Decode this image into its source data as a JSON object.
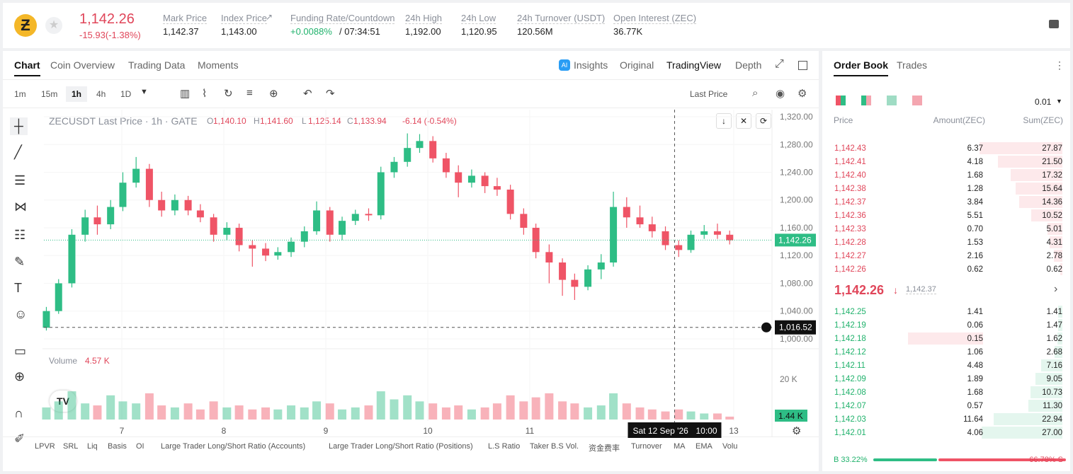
{
  "header": {
    "price": "1,142.26",
    "change": "-15.93(-1.38%)",
    "stats": [
      {
        "label": "Mark Price",
        "value": "1,142.37"
      },
      {
        "label": "Index Price",
        "value": "1,143.00"
      },
      {
        "label": "Funding Rate/Countdown",
        "value": "+0.0088%",
        "value2": "/ 07:34:51"
      },
      {
        "label": "24h High",
        "value": "1,192.00"
      },
      {
        "label": "24h Low",
        "value": "1,120.95"
      },
      {
        "label": "24h Turnover (USDT)",
        "value": "120.56M"
      },
      {
        "label": "Open Interest (ZEC)",
        "value": "36.77K"
      }
    ]
  },
  "tabs": [
    "Chart",
    "Coin Overview",
    "Trading Data",
    "Moments"
  ],
  "view_tabs": [
    "Insights",
    "Original",
    "TradingView",
    "Depth"
  ],
  "intervals": [
    "1m",
    "15m",
    "1h",
    "4h",
    "1D"
  ],
  "price_type": "Last Price",
  "legend": {
    "title": "ZECUSDT Last Price · 1h · GATE",
    "ohlc": [
      [
        "O",
        "1,140.10"
      ],
      [
        "H",
        "1,141.60"
      ],
      [
        "L",
        "1,125.14"
      ],
      [
        "C",
        "1,133.94"
      ]
    ],
    "change": "-6.14 (-0.54%)"
  },
  "volume": {
    "label": "Volume",
    "value": "4.57 K"
  },
  "indicators": [
    "LPVR",
    "SRL",
    "Liq",
    "Basis",
    "OI",
    "Large Trader Long/Short Ratio (Accounts)",
    "Large Trader Long/Short Ratio (Positions)",
    "L.S Ratio",
    "Taker B.S Vol.",
    "资金费率",
    "Turnover",
    "MA",
    "EMA",
    "Volu"
  ],
  "chart_data": {
    "type": "candlestick",
    "up_color": "#2ebd85",
    "down_color": "#ef5466",
    "x": [
      6.26,
      6.38,
      6.51,
      6.64,
      6.76,
      6.89,
      7.01,
      7.14,
      7.27,
      7.39,
      7.52,
      7.65,
      7.77,
      7.9,
      8.03,
      8.15,
      8.28,
      8.41,
      8.53,
      8.66,
      8.79,
      8.91,
      9.04,
      9.16,
      9.29,
      9.42,
      9.54,
      9.67,
      9.8,
      9.92,
      10.05,
      10.18,
      10.3,
      10.43,
      10.56,
      10.68,
      10.81,
      10.94,
      11.06,
      11.19,
      11.32,
      11.44,
      11.57,
      11.7,
      11.82,
      11.95,
      12.08,
      12.2,
      12.33,
      12.46,
      12.58,
      12.71,
      12.84,
      12.96
    ],
    "candles": [
      [
        1016,
        1046,
        1012,
        1040
      ],
      [
        1040,
        1086,
        1036,
        1080
      ],
      [
        1080,
        1158,
        1074,
        1150
      ],
      [
        1150,
        1186,
        1140,
        1175
      ],
      [
        1175,
        1192,
        1150,
        1165
      ],
      [
        1165,
        1200,
        1158,
        1190
      ],
      [
        1190,
        1240,
        1184,
        1225
      ],
      [
        1225,
        1262,
        1218,
        1245
      ],
      [
        1245,
        1252,
        1190,
        1200
      ],
      [
        1200,
        1212,
        1176,
        1185
      ],
      [
        1185,
        1208,
        1178,
        1200
      ],
      [
        1200,
        1206,
        1178,
        1185
      ],
      [
        1185,
        1194,
        1168,
        1175
      ],
      [
        1175,
        1180,
        1140,
        1150
      ],
      [
        1150,
        1168,
        1142,
        1160
      ],
      [
        1160,
        1166,
        1126,
        1135
      ],
      [
        1135,
        1142,
        1104,
        1130
      ],
      [
        1130,
        1138,
        1112,
        1120
      ],
      [
        1120,
        1132,
        1114,
        1125
      ],
      [
        1125,
        1146,
        1118,
        1140
      ],
      [
        1140,
        1162,
        1132,
        1155
      ],
      [
        1155,
        1198,
        1150,
        1185
      ],
      [
        1185,
        1190,
        1140,
        1150
      ],
      [
        1150,
        1176,
        1142,
        1170
      ],
      [
        1170,
        1186,
        1164,
        1180
      ],
      [
        1180,
        1188,
        1170,
        1178
      ],
      [
        1178,
        1248,
        1172,
        1240
      ],
      [
        1240,
        1262,
        1232,
        1255
      ],
      [
        1255,
        1296,
        1248,
        1275
      ],
      [
        1275,
        1295,
        1268,
        1285
      ],
      [
        1285,
        1292,
        1254,
        1260
      ],
      [
        1260,
        1268,
        1232,
        1240
      ],
      [
        1240,
        1250,
        1204,
        1225
      ],
      [
        1225,
        1244,
        1218,
        1235
      ],
      [
        1235,
        1240,
        1210,
        1220
      ],
      [
        1220,
        1232,
        1206,
        1215
      ],
      [
        1215,
        1222,
        1172,
        1180
      ],
      [
        1180,
        1188,
        1150,
        1160
      ],
      [
        1160,
        1166,
        1116,
        1125
      ],
      [
        1125,
        1136,
        1080,
        1110
      ],
      [
        1110,
        1116,
        1062,
        1085
      ],
      [
        1085,
        1094,
        1056,
        1075
      ],
      [
        1075,
        1106,
        1070,
        1100
      ],
      [
        1100,
        1122,
        1086,
        1110
      ],
      [
        1110,
        1212,
        1104,
        1190
      ],
      [
        1190,
        1204,
        1160,
        1175
      ],
      [
        1175,
        1192,
        1160,
        1165
      ],
      [
        1165,
        1176,
        1146,
        1155
      ],
      [
        1155,
        1162,
        1128,
        1135
      ],
      [
        1135,
        1142,
        1118,
        1128
      ],
      [
        1128,
        1156,
        1124,
        1150
      ],
      [
        1150,
        1164,
        1144,
        1155
      ],
      [
        1155,
        1166,
        1144,
        1150
      ],
      [
        1150,
        1156,
        1136,
        1142
      ]
    ],
    "volumes": [
      6000,
      9000,
      14000,
      8000,
      7000,
      12000,
      9000,
      8000,
      13000,
      7000,
      6000,
      8000,
      5000,
      9000,
      6000,
      7000,
      5000,
      6000,
      5000,
      7000,
      6000,
      9000,
      8000,
      5000,
      6000,
      7000,
      14000,
      10000,
      12000,
      9000,
      8000,
      6000,
      7000,
      5000,
      6000,
      8000,
      12000,
      9000,
      11000,
      13000,
      9000,
      8000,
      6000,
      7000,
      13000,
      8000,
      6000,
      5000,
      4000,
      5000,
      4000,
      3000,
      3000,
      1440
    ],
    "xlim": [
      6.236,
      13.375
    ],
    "ylim": [
      986.7,
      1330.2
    ],
    "vlim": [
      0,
      34400
    ],
    "xticks": [
      {
        "value": 7,
        "label": "7"
      },
      {
        "value": 8,
        "label": "8"
      },
      {
        "value": 9,
        "label": "9"
      },
      {
        "value": 10,
        "label": "10"
      },
      {
        "value": 11,
        "label": "11"
      },
      {
        "value": 13,
        "label": "13"
      }
    ],
    "yticks": [
      {
        "value": 1000,
        "label": "1,000.00"
      },
      {
        "value": 1040,
        "label": "1,040.00"
      },
      {
        "value": 1080,
        "label": "1,080.00"
      },
      {
        "value": 1120,
        "label": "1,120.00"
      },
      {
        "value": 1160,
        "label": "1,160.00"
      },
      {
        "value": 1200,
        "label": "1,200.00"
      },
      {
        "value": 1240,
        "label": "1,240.00"
      },
      {
        "value": 1280,
        "label": "1,280.00"
      },
      {
        "value": 1320,
        "label": "1,320.00"
      }
    ],
    "vticks": [
      {
        "value": 20000,
        "label": "20 K"
      }
    ],
    "last": {
      "value": 1142.26,
      "label": "1,142.26"
    },
    "last_volume_label": "1.44 K",
    "crosshair": {
      "x": 12.42,
      "date": "Sat 12 Sep '26",
      "time": "10:00",
      "y": 1016.52,
      "y_label": "1,016.52"
    }
  },
  "order_book": {
    "tabs": [
      "Order Book",
      "Trades"
    ],
    "precision": "0.01",
    "columns": [
      "Price",
      "Amount(ZEC)",
      "Sum(ZEC)"
    ],
    "asks": [
      [
        "1,142.43",
        "6.37",
        "27.87"
      ],
      [
        "1,142.41",
        "4.18",
        "21.50"
      ],
      [
        "1,142.40",
        "1.68",
        "17.32"
      ],
      [
        "1,142.38",
        "1.28",
        "15.64"
      ],
      [
        "1,142.37",
        "3.84",
        "14.36"
      ],
      [
        "1,142.36",
        "5.51",
        "10.52"
      ],
      [
        "1,142.33",
        "0.70",
        "5.01"
      ],
      [
        "1,142.28",
        "1.53",
        "4.31"
      ],
      [
        "1,142.27",
        "2.16",
        "2.78"
      ],
      [
        "1,142.26",
        "0.62",
        "0.62"
      ]
    ],
    "last": "1,142.26",
    "mark": "1,142.37",
    "bids": [
      [
        "1,142.25",
        "1.41",
        "1.41"
      ],
      [
        "1,142.19",
        "0.06",
        "1.47"
      ],
      [
        "1,142.18",
        "0.15",
        "1.62"
      ],
      [
        "1,142.12",
        "1.06",
        "2.68"
      ],
      [
        "1,142.11",
        "4.48",
        "7.16"
      ],
      [
        "1,142.09",
        "1.89",
        "9.05"
      ],
      [
        "1,142.08",
        "1.68",
        "10.73"
      ],
      [
        "1,142.07",
        "0.57",
        "11.30"
      ],
      [
        "1,142.03",
        "11.64",
        "22.94"
      ],
      [
        "1,142.01",
        "4.06",
        "27.00"
      ]
    ],
    "ratio": {
      "values": [
        33.22,
        66.78
      ],
      "value_labels": [
        "B 33.22%",
        "66.78% S"
      ]
    }
  }
}
